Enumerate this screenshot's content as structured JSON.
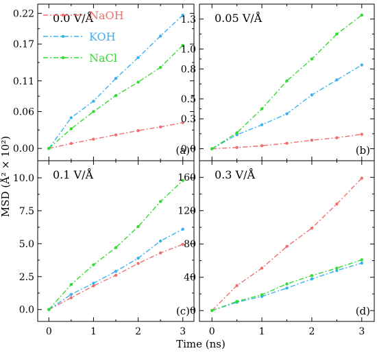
{
  "figure": {
    "ylabel": "MSD (Å² × 10²)",
    "xlabel": "Time (ns)"
  },
  "colors": {
    "NaOH": "#f26d6d",
    "KOH": "#3ab0ee",
    "NaCl": "#2fdc2f"
  },
  "chart_data": [
    {
      "type": "line",
      "panel": "(a)",
      "annotation": "0.0 V/Å",
      "x": [
        0,
        0.5,
        1,
        1.5,
        2,
        2.5,
        3
      ],
      "xlim": [
        -0.25,
        3.25
      ],
      "xticks": [
        "0",
        "1",
        "2",
        "3"
      ],
      "ylim": [
        -0.02,
        0.235
      ],
      "yticks": [
        "0.00",
        "0.06",
        "0.11",
        "0.17",
        "0.22"
      ],
      "legend_position": "top-left",
      "series": [
        {
          "name": "NaOH",
          "values": [
            0.0,
            0.008,
            0.015,
            0.022,
            0.029,
            0.035,
            0.042
          ]
        },
        {
          "name": "KOH",
          "values": [
            0.0,
            0.05,
            0.077,
            0.114,
            0.148,
            0.183,
            0.217
          ]
        },
        {
          "name": "NaCl",
          "values": [
            0.0,
            0.032,
            0.06,
            0.086,
            0.108,
            0.132,
            0.168
          ]
        }
      ]
    },
    {
      "type": "line",
      "panel": "(b)",
      "annotation": "0.05 V/Å",
      "x": [
        0,
        0.5,
        1,
        1.5,
        2,
        2.5,
        3
      ],
      "xlim": [
        -0.25,
        3.25
      ],
      "xticks": [
        "0",
        "1",
        "2",
        "3"
      ],
      "ylim": [
        -0.12,
        1.45
      ],
      "yticks": [
        "0.0",
        "0.3",
        "0.5",
        "0.8",
        "1.0",
        "1.3"
      ],
      "series": [
        {
          "name": "NaOH",
          "values": [
            0.0,
            0.012,
            0.03,
            0.055,
            0.085,
            0.11,
            0.145
          ]
        },
        {
          "name": "KOH",
          "values": [
            0.0,
            0.14,
            0.24,
            0.35,
            0.54,
            0.69,
            0.84
          ]
        },
        {
          "name": "NaCl",
          "values": [
            0.0,
            0.16,
            0.4,
            0.68,
            0.9,
            1.15,
            1.34
          ]
        }
      ]
    },
    {
      "type": "line",
      "panel": "(c)",
      "annotation": "0.1 V/Å",
      "x": [
        0,
        0.5,
        1,
        1.5,
        2,
        2.5,
        3
      ],
      "xlim": [
        -0.25,
        3.25
      ],
      "xticks": [
        "0",
        "1",
        "2",
        "3"
      ],
      "ylim": [
        -0.9,
        11.3
      ],
      "yticks": [
        "0.0",
        "2.5",
        "5.0",
        "7.5",
        "10.0"
      ],
      "series": [
        {
          "name": "NaOH",
          "values": [
            0.0,
            0.9,
            1.8,
            2.6,
            3.5,
            4.3,
            4.95
          ]
        },
        {
          "name": "KOH",
          "values": [
            0.0,
            1.15,
            2.0,
            2.9,
            3.9,
            5.2,
            6.1
          ]
        },
        {
          "name": "NaCl",
          "values": [
            0.0,
            1.9,
            3.4,
            4.7,
            6.3,
            8.2,
            9.8
          ]
        }
      ]
    },
    {
      "type": "line",
      "panel": "(d)",
      "annotation": "0.3 V/Å",
      "x": [
        0,
        0.5,
        1,
        1.5,
        2,
        2.5,
        3
      ],
      "xlim": [
        -0.25,
        3.25
      ],
      "xticks": [
        "0",
        "1",
        "2",
        "3"
      ],
      "ylim": [
        -13,
        180
      ],
      "yticks": [
        "0",
        "40",
        "80",
        "120",
        "160"
      ],
      "series": [
        {
          "name": "NaOH",
          "values": [
            0,
            30,
            51,
            77,
            99,
            128,
            159
          ]
        },
        {
          "name": "KOH",
          "values": [
            0,
            10,
            17,
            27,
            38,
            48,
            57
          ]
        },
        {
          "name": "NaCl",
          "values": [
            0,
            11,
            19,
            32,
            42,
            51,
            61
          ]
        }
      ]
    }
  ]
}
